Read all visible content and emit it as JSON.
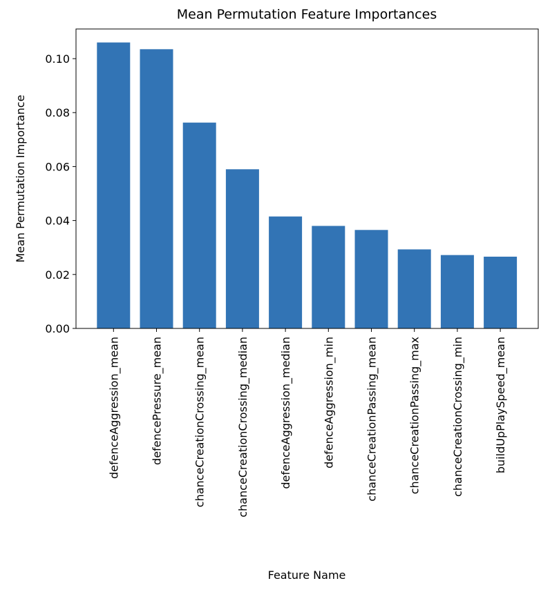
{
  "chart_data": {
    "type": "bar",
    "title": "Mean Permutation Feature Importances",
    "xlabel": "Feature Name",
    "ylabel": "Mean Permutation Importance",
    "ylim": [
      0,
      0.111
    ],
    "yticks": [
      "0.00",
      "0.02",
      "0.04",
      "0.06",
      "0.08",
      "0.10"
    ],
    "grid": false,
    "categories": [
      "defenceAggression_mean",
      "defencePressure_mean",
      "chanceCreationCrossing_mean",
      "chanceCreationCrossing_median",
      "defenceAggression_median",
      "defenceAggression_min",
      "chanceCreationPassing_mean",
      "chanceCreationPassing_max",
      "chanceCreationCrossing_min",
      "buildUpPlaySpeed_mean"
    ],
    "values": [
      0.106,
      0.1035,
      0.0763,
      0.059,
      0.0415,
      0.038,
      0.0365,
      0.0293,
      0.0272,
      0.0266
    ],
    "bar_color": "#3274b5"
  }
}
